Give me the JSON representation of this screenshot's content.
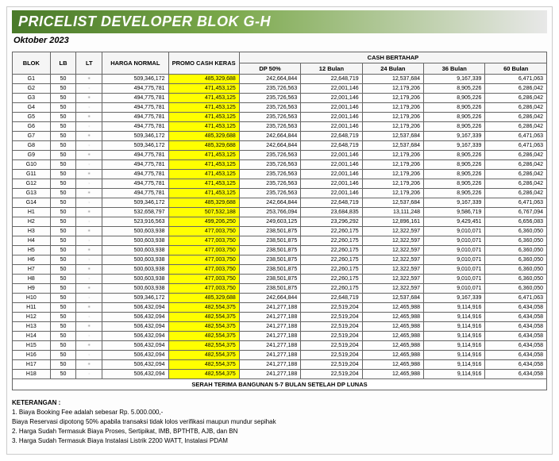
{
  "title": "PRICELIST DEVELOPER BLOK G-H",
  "subtitle": "Oktober 2023",
  "table": {
    "headers": {
      "blok": "BLOK",
      "lb": "LB",
      "lt": "LT",
      "harga_normal": "HARGA NORMAL",
      "promo_cash_keras": "PROMO CASH KERAS",
      "cash_bertahap": "CASH BERTAHAP",
      "dp50": "DP 50%",
      "b12": "12 Bulan",
      "b24": "24 Bulan",
      "b36": "36 Bulan",
      "b60": "60 Bulan"
    },
    "lt_glyphs": [
      "•",
      "·",
      "•",
      "·",
      "•",
      "·",
      "•",
      "·",
      "•",
      "·",
      "•",
      "·",
      "•",
      "·",
      "•",
      "·",
      "•",
      "·",
      "•",
      "·",
      "•",
      "·",
      "•",
      "·",
      "•",
      "·",
      "•",
      "·",
      "•",
      "·",
      "•",
      "·"
    ],
    "rows": [
      {
        "blok": "G1",
        "lb": "50",
        "hn": "509,346,172",
        "pck": "485,329,688",
        "dp": "242,664,844",
        "b12": "22,648,719",
        "b24": "12,537,684",
        "b36": "9,167,339",
        "b60": "6,471,063"
      },
      {
        "blok": "G2",
        "lb": "50",
        "hn": "494,775,781",
        "pck": "471,453,125",
        "dp": "235,726,563",
        "b12": "22,001,146",
        "b24": "12,179,206",
        "b36": "8,905,226",
        "b60": "6,286,042"
      },
      {
        "blok": "G3",
        "lb": "50",
        "hn": "494,775,781",
        "pck": "471,453,125",
        "dp": "235,726,563",
        "b12": "22,001,146",
        "b24": "12,179,206",
        "b36": "8,905,226",
        "b60": "6,286,042"
      },
      {
        "blok": "G4",
        "lb": "50",
        "hn": "494,775,781",
        "pck": "471,453,125",
        "dp": "235,726,563",
        "b12": "22,001,146",
        "b24": "12,179,206",
        "b36": "8,905,226",
        "b60": "6,286,042"
      },
      {
        "blok": "G5",
        "lb": "50",
        "hn": "494,775,781",
        "pck": "471,453,125",
        "dp": "235,726,563",
        "b12": "22,001,146",
        "b24": "12,179,206",
        "b36": "8,905,226",
        "b60": "6,286,042"
      },
      {
        "blok": "G6",
        "lb": "50",
        "hn": "494,775,781",
        "pck": "471,453,125",
        "dp": "235,726,563",
        "b12": "22,001,146",
        "b24": "12,179,206",
        "b36": "8,905,226",
        "b60": "6,286,042"
      },
      {
        "blok": "G7",
        "lb": "50",
        "hn": "509,346,172",
        "pck": "485,329,688",
        "dp": "242,664,844",
        "b12": "22,648,719",
        "b24": "12,537,684",
        "b36": "9,167,339",
        "b60": "6,471,063"
      },
      {
        "blok": "G8",
        "lb": "50",
        "hn": "509,346,172",
        "pck": "485,329,688",
        "dp": "242,664,844",
        "b12": "22,648,719",
        "b24": "12,537,684",
        "b36": "9,167,339",
        "b60": "6,471,063"
      },
      {
        "blok": "G9",
        "lb": "50",
        "hn": "494,775,781",
        "pck": "471,453,125",
        "dp": "235,726,563",
        "b12": "22,001,146",
        "b24": "12,179,206",
        "b36": "8,905,226",
        "b60": "6,286,042"
      },
      {
        "blok": "G10",
        "lb": "50",
        "hn": "494,775,781",
        "pck": "471,453,125",
        "dp": "235,726,563",
        "b12": "22,001,146",
        "b24": "12,179,206",
        "b36": "8,905,226",
        "b60": "6,286,042"
      },
      {
        "blok": "G11",
        "lb": "50",
        "hn": "494,775,781",
        "pck": "471,453,125",
        "dp": "235,726,563",
        "b12": "22,001,146",
        "b24": "12,179,206",
        "b36": "8,905,226",
        "b60": "6,286,042"
      },
      {
        "blok": "G12",
        "lb": "50",
        "hn": "494,775,781",
        "pck": "471,453,125",
        "dp": "235,726,563",
        "b12": "22,001,146",
        "b24": "12,179,206",
        "b36": "8,905,226",
        "b60": "6,286,042"
      },
      {
        "blok": "G13",
        "lb": "50",
        "hn": "494,775,781",
        "pck": "471,453,125",
        "dp": "235,726,563",
        "b12": "22,001,146",
        "b24": "12,179,206",
        "b36": "8,905,226",
        "b60": "6,286,042"
      },
      {
        "blok": "G14",
        "lb": "50",
        "hn": "509,346,172",
        "pck": "485,329,688",
        "dp": "242,664,844",
        "b12": "22,648,719",
        "b24": "12,537,684",
        "b36": "9,167,339",
        "b60": "6,471,063"
      },
      {
        "blok": "H1",
        "lb": "50",
        "hn": "532,658,797",
        "pck": "507,532,188",
        "dp": "253,766,094",
        "b12": "23,684,835",
        "b24": "13,111,248",
        "b36": "9,586,719",
        "b60": "6,767,094"
      },
      {
        "blok": "H2",
        "lb": "50",
        "hn": "523,916,563",
        "pck": "499,206,250",
        "dp": "249,603,125",
        "b12": "23,296,292",
        "b24": "12,896,161",
        "b36": "9,429,451",
        "b60": "6,656,083"
      },
      {
        "blok": "H3",
        "lb": "50",
        "hn": "500,603,938",
        "pck": "477,003,750",
        "dp": "238,501,875",
        "b12": "22,260,175",
        "b24": "12,322,597",
        "b36": "9,010,071",
        "b60": "6,360,050"
      },
      {
        "blok": "H4",
        "lb": "50",
        "hn": "500,603,938",
        "pck": "477,003,750",
        "dp": "238,501,875",
        "b12": "22,260,175",
        "b24": "12,322,597",
        "b36": "9,010,071",
        "b60": "6,360,050"
      },
      {
        "blok": "H5",
        "lb": "50",
        "hn": "500,603,938",
        "pck": "477,003,750",
        "dp": "238,501,875",
        "b12": "22,260,175",
        "b24": "12,322,597",
        "b36": "9,010,071",
        "b60": "6,360,050"
      },
      {
        "blok": "H6",
        "lb": "50",
        "hn": "500,603,938",
        "pck": "477,003,750",
        "dp": "238,501,875",
        "b12": "22,260,175",
        "b24": "12,322,597",
        "b36": "9,010,071",
        "b60": "6,360,050"
      },
      {
        "blok": "H7",
        "lb": "50",
        "hn": "500,603,938",
        "pck": "477,003,750",
        "dp": "238,501,875",
        "b12": "22,260,175",
        "b24": "12,322,597",
        "b36": "9,010,071",
        "b60": "6,360,050"
      },
      {
        "blok": "H8",
        "lb": "50",
        "hn": "500,603,938",
        "pck": "477,003,750",
        "dp": "238,501,875",
        "b12": "22,260,175",
        "b24": "12,322,597",
        "b36": "9,010,071",
        "b60": "6,360,050"
      },
      {
        "blok": "H9",
        "lb": "50",
        "hn": "500,603,938",
        "pck": "477,003,750",
        "dp": "238,501,875",
        "b12": "22,260,175",
        "b24": "12,322,597",
        "b36": "9,010,071",
        "b60": "6,360,050"
      },
      {
        "blok": "H10",
        "lb": "50",
        "hn": "509,346,172",
        "pck": "485,329,688",
        "dp": "242,664,844",
        "b12": "22,648,719",
        "b24": "12,537,684",
        "b36": "9,167,339",
        "b60": "6,471,063"
      },
      {
        "blok": "H11",
        "lb": "50",
        "hn": "506,432,094",
        "pck": "482,554,375",
        "dp": "241,277,188",
        "b12": "22,519,204",
        "b24": "12,465,988",
        "b36": "9,114,916",
        "b60": "6,434,058"
      },
      {
        "blok": "H12",
        "lb": "50",
        "hn": "506,432,094",
        "pck": "482,554,375",
        "dp": "241,277,188",
        "b12": "22,519,204",
        "b24": "12,465,988",
        "b36": "9,114,916",
        "b60": "6,434,058"
      },
      {
        "blok": "H13",
        "lb": "50",
        "hn": "506,432,094",
        "pck": "482,554,375",
        "dp": "241,277,188",
        "b12": "22,519,204",
        "b24": "12,465,988",
        "b36": "9,114,916",
        "b60": "6,434,058"
      },
      {
        "blok": "H14",
        "lb": "50",
        "hn": "506,432,094",
        "pck": "482,554,375",
        "dp": "241,277,188",
        "b12": "22,519,204",
        "b24": "12,465,988",
        "b36": "9,114,916",
        "b60": "6,434,058"
      },
      {
        "blok": "H15",
        "lb": "50",
        "hn": "506,432,094",
        "pck": "482,554,375",
        "dp": "241,277,188",
        "b12": "22,519,204",
        "b24": "12,465,988",
        "b36": "9,114,916",
        "b60": "6,434,058"
      },
      {
        "blok": "H16",
        "lb": "50",
        "hn": "506,432,094",
        "pck": "482,554,375",
        "dp": "241,277,188",
        "b12": "22,519,204",
        "b24": "12,465,988",
        "b36": "9,114,916",
        "b60": "6,434,058"
      },
      {
        "blok": "H17",
        "lb": "50",
        "hn": "506,432,094",
        "pck": "482,554,375",
        "dp": "241,277,188",
        "b12": "22,519,204",
        "b24": "12,465,988",
        "b36": "9,114,916",
        "b60": "6,434,058"
      },
      {
        "blok": "H18",
        "lb": "50",
        "hn": "506,432,094",
        "pck": "482,554,375",
        "dp": "241,277,188",
        "b12": "22,519,204",
        "b24": "12,465,988",
        "b36": "9,114,916",
        "b60": "6,434,058"
      }
    ],
    "footer": "SERAH TERIMA BANGUNAN 5-7 BULAN SETELAH DP LUNAS"
  },
  "notes": {
    "title": "KETERANGAN :",
    "items": [
      "1. Biaya Booking Fee adalah sebesar Rp. 5.000.000,-",
      "    Biaya Reservasi dipotong 50% apabila transaksi tidak lolos verifikasi maupun mundur sepihak",
      "2. Harga Sudah Termasuk Biaya Proses, Sertipikat, IMB, BPTHTB, AJB, dan BN",
      "3. Harga Sudah Termasuk Biaya Instalasi Listrik 2200 WATT, Instalasi PDAM"
    ]
  },
  "colors": {
    "promo_bg": "#ffff00",
    "header_grad_start": "#4a7a2a",
    "header_grad_end": "#e8e8e8",
    "border": "#666666"
  }
}
